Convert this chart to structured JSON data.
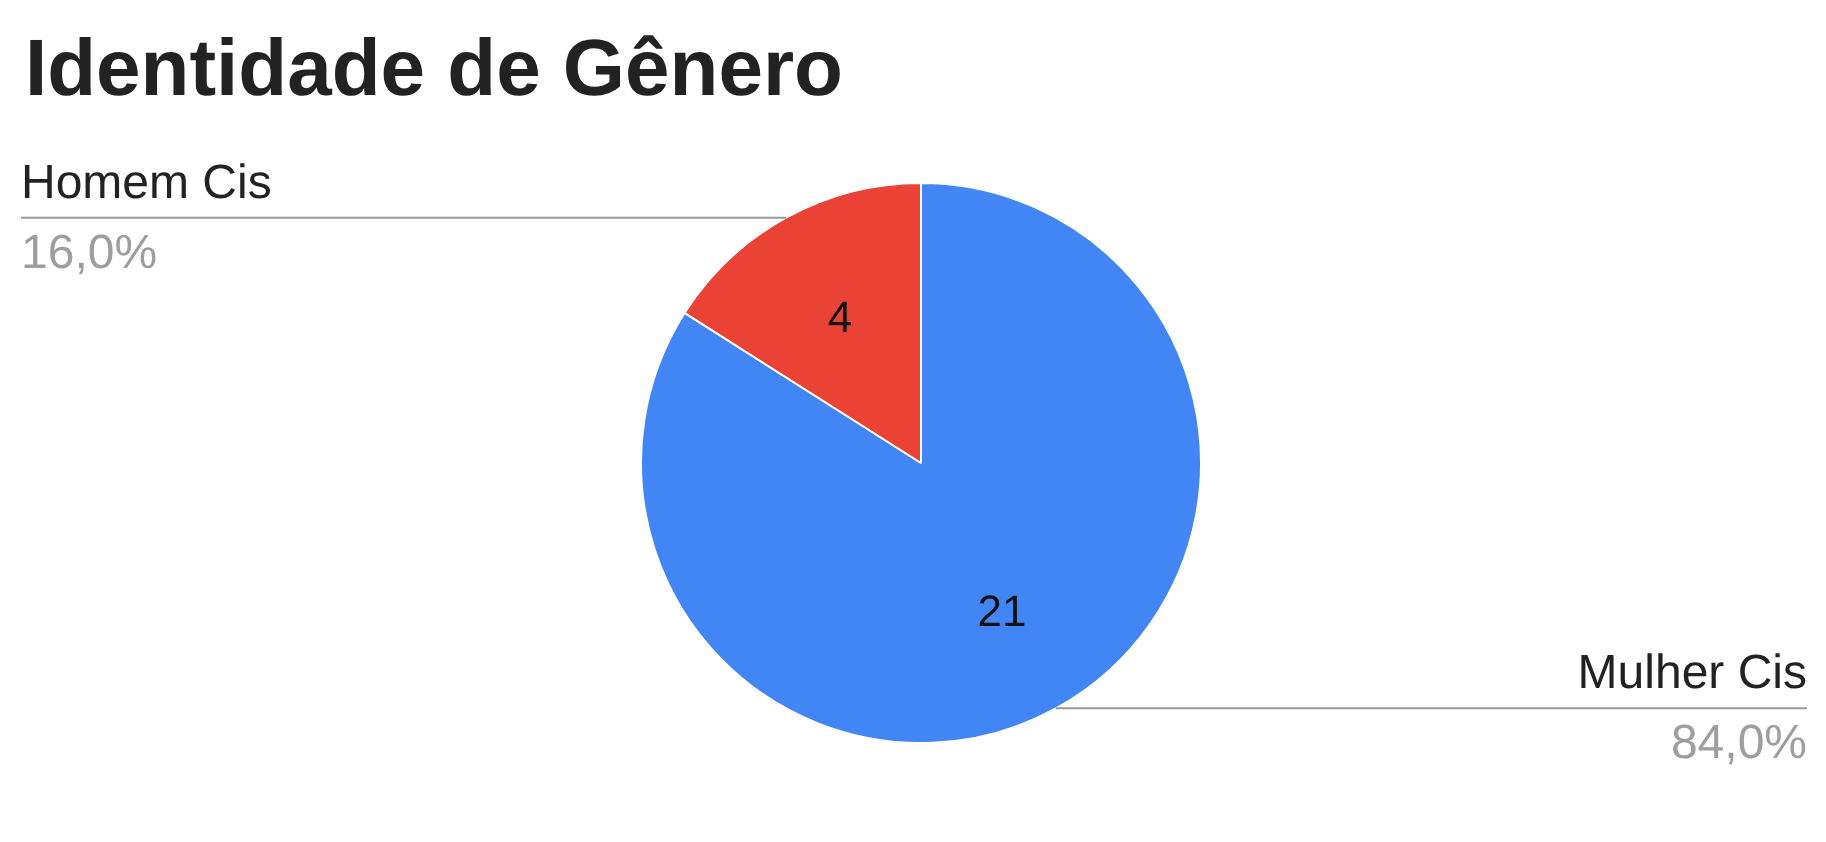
{
  "chart_data": {
    "type": "pie",
    "title": "Identidade de Gênero",
    "categories": [
      "Mulher Cis",
      "Homem Cis"
    ],
    "values": [
      84,
      16
    ],
    "annotations": [
      "21",
      "4"
    ],
    "colors": [
      "#4285f4",
      "#ea4335"
    ],
    "value_labels": [
      "84,0%",
      "16,0%"
    ]
  }
}
